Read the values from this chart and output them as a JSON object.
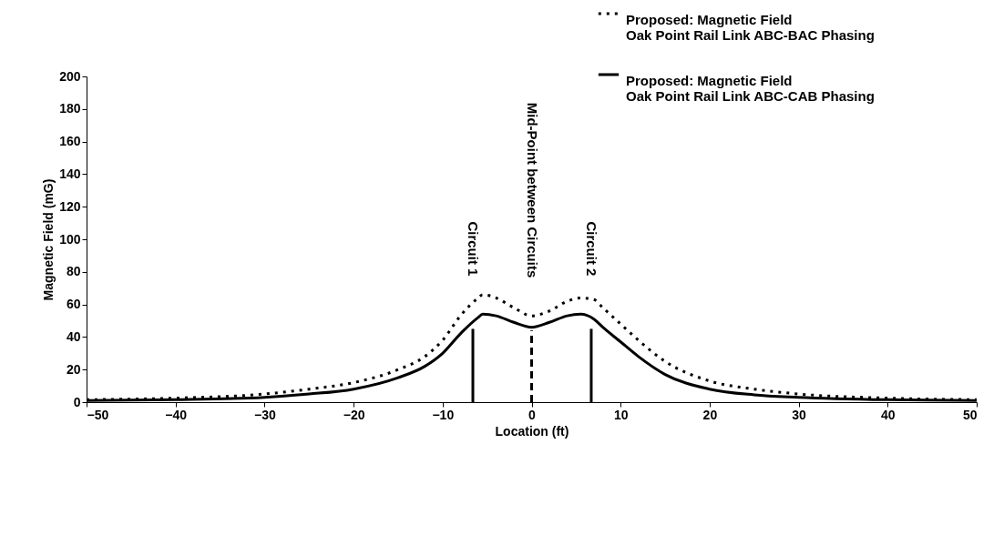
{
  "chart_data": {
    "type": "line",
    "xlabel": "Location   (ft)",
    "ylabel": "Magnetic Field  (mG)",
    "xlim": [
      -50,
      50
    ],
    "ylim": [
      0,
      200
    ],
    "xticks": [
      -50,
      -40,
      -30,
      -20,
      -10,
      0,
      10,
      20,
      30,
      40,
      50
    ],
    "yticks": [
      0,
      20,
      40,
      60,
      80,
      100,
      120,
      140,
      160,
      180,
      200
    ],
    "grid": false,
    "legend": "top right",
    "series": [
      {
        "name": "Proposed:   Magnetic Field\nOak Point Rail Link ABC-BAC Phasing",
        "color": "#000000",
        "line_style": "dotted",
        "x": [
          -50,
          -40,
          -30,
          -25,
          -20,
          -15,
          -12,
          -10,
          -8,
          -6,
          -5.5,
          -4,
          -2,
          0,
          2,
          4,
          5.5,
          7,
          8,
          10,
          12,
          15,
          20,
          25,
          30,
          40,
          50
        ],
        "values": [
          1.5,
          2.5,
          5,
          8,
          12,
          20,
          28,
          38,
          53,
          64,
          66,
          64,
          58,
          53,
          56,
          62,
          64,
          63,
          58,
          48,
          38,
          25,
          13,
          8,
          5,
          2.5,
          1.5
        ]
      },
      {
        "name": "Proposed:   Magnetic Field\nOak Point Rail Link  ABC-CAB Phasing",
        "color": "#000000",
        "line_style": "solid",
        "x": [
          -50,
          -40,
          -30,
          -25,
          -20,
          -15,
          -12,
          -10,
          -8,
          -6,
          -5.5,
          -4,
          -2,
          0,
          2,
          4,
          5.5,
          7,
          8,
          10,
          12,
          15,
          20,
          25,
          30,
          40,
          50
        ],
        "values": [
          1,
          1.5,
          3,
          5,
          8,
          15,
          22,
          30,
          42,
          52,
          54,
          53,
          49,
          46,
          49,
          53,
          54,
          51,
          46,
          37,
          28,
          17,
          8,
          4.5,
          3,
          1.5,
          1
        ]
      },
      {
        "color": "#000000",
        "line_style": "solid",
        "x": [
          -6.6,
          -6.6
        ],
        "values": [
          0,
          45
        ]
      },
      {
        "color": "#000000",
        "line_style": "dashed",
        "x": [
          0,
          0
        ],
        "values": [
          0,
          44
        ]
      },
      {
        "color": "#000000",
        "line_style": "solid",
        "x": [
          6.7,
          6.7
        ],
        "values": [
          0,
          45
        ]
      }
    ],
    "annotations": [
      "Circuit 1",
      "Mid-Point between Circuits",
      "Circuit 2"
    ]
  }
}
